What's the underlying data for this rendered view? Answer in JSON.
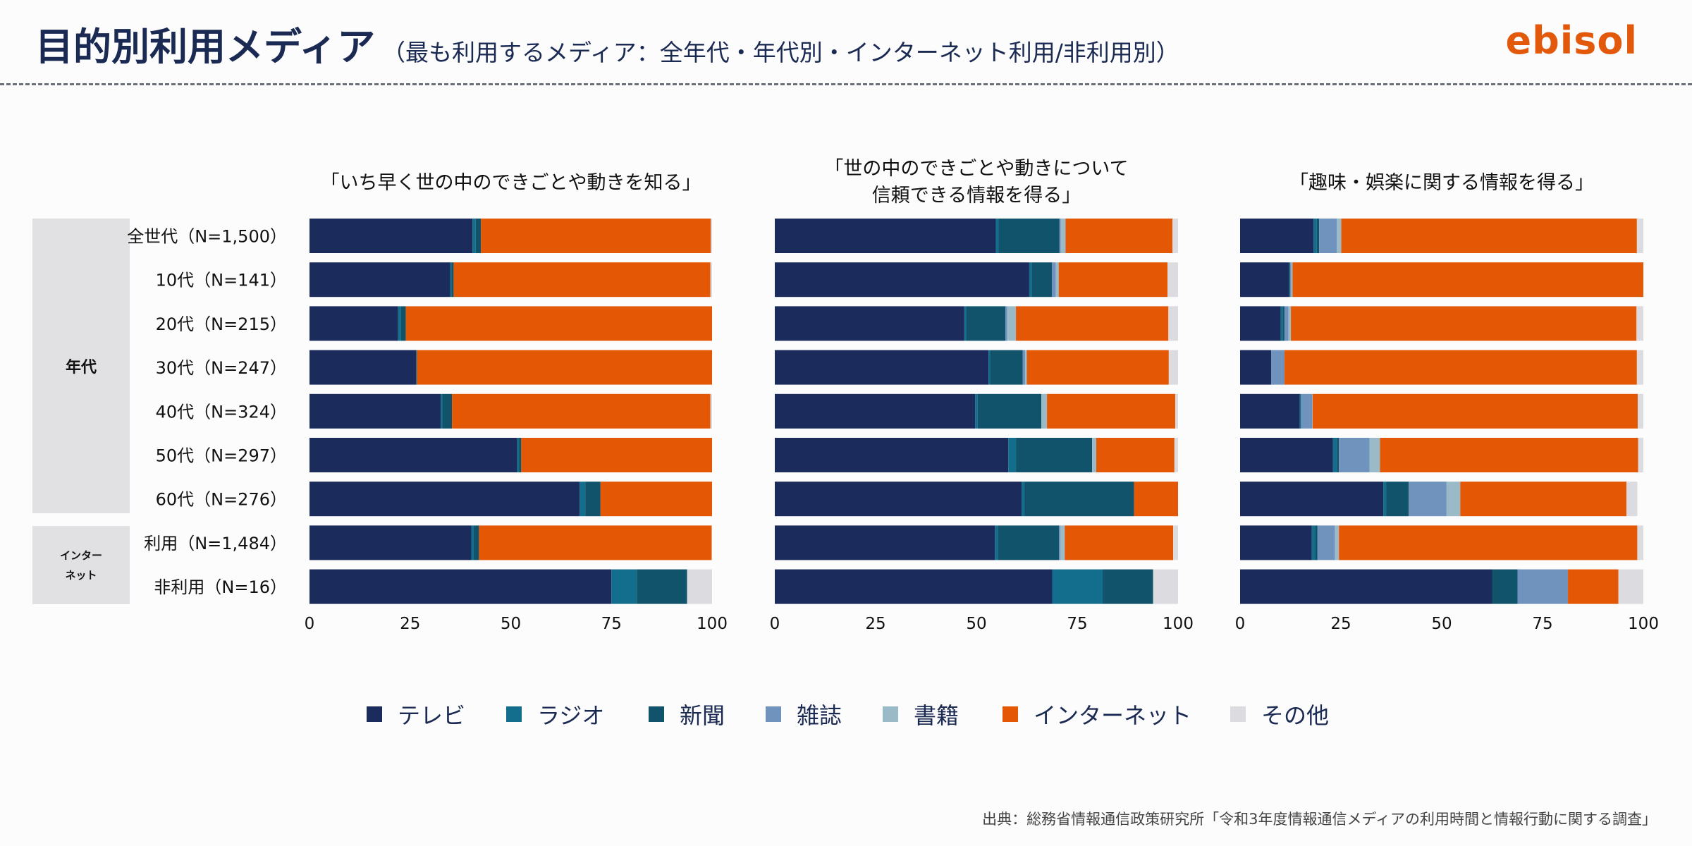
{
  "header": {
    "title": "目的別利用メディア",
    "subtitle": "（最も利用するメディア：全年代・年代別・インターネット利用/非利用別）",
    "logo": "ebisol"
  },
  "groups": {
    "age": "年代",
    "internet_line1": "インター",
    "internet_line2": "ネット"
  },
  "source": "出典：総務省情報通信政策研究所「令和3年度情報通信メディアの利用時間と情報行動に関する調査」",
  "colors": {
    "テレビ": "#1b2b5c",
    "ラジオ": "#136d8c",
    "新聞": "#10536a",
    "雑誌": "#6f93bc",
    "書籍": "#9bbac8",
    "インターネット": "#e35705",
    "その他": "#dcdce0"
  },
  "chart_data": [
    {
      "type": "bar",
      "orientation": "horizontal-stacked",
      "title_lines": [
        "「いち早く世の中のできごとや動きを知る」"
      ],
      "categories": [
        "全世代（N=1,500）",
        "10代（N=141）",
        "20代（N=215）",
        "30代（N=247）",
        "40代（N=324）",
        "50代（N=297）",
        "60代（N=276）",
        "利用（N=1,484）",
        "非利用（N=16）"
      ],
      "xlim": [
        0,
        100
      ],
      "xticks": [
        0,
        25,
        50,
        75,
        100
      ],
      "series": [
        {
          "name": "テレビ",
          "values": [
            40.5,
            35.0,
            22.0,
            26.5,
            32.6,
            51.6,
            67.1,
            40.2,
            75.0
          ]
        },
        {
          "name": "ラジオ",
          "values": [
            0.8,
            0.3,
            0.7,
            0.2,
            0.4,
            0.5,
            1.4,
            0.6,
            6.3
          ]
        },
        {
          "name": "新聞",
          "values": [
            1.3,
            0.5,
            1.2,
            0.0,
            2.4,
            0.5,
            3.8,
            1.3,
            12.5
          ]
        },
        {
          "name": "雑誌",
          "values": [
            0.0,
            0.0,
            0.0,
            0.0,
            0.0,
            0.0,
            0.0,
            0.0,
            0.0
          ]
        },
        {
          "name": "書籍",
          "values": [
            0.0,
            0.0,
            0.0,
            0.0,
            0.0,
            0.0,
            0.0,
            0.0,
            0.0
          ]
        },
        {
          "name": "インターネット",
          "values": [
            57.1,
            63.8,
            76.1,
            73.3,
            64.2,
            47.4,
            27.7,
            57.8,
            0.0
          ]
        },
        {
          "name": "その他",
          "values": [
            0.3,
            0.4,
            0.0,
            0.0,
            0.4,
            0.0,
            0.0,
            0.1,
            6.2
          ]
        }
      ]
    },
    {
      "type": "bar",
      "orientation": "horizontal-stacked",
      "title_lines": [
        "「世の中のできごとや動きについて",
        "信頼できる情報を得る」"
      ],
      "categories": [
        "全世代（N=1,500）",
        "10代（N=141）",
        "20代（N=215）",
        "30代（N=247）",
        "40代（N=324）",
        "50代（N=297）",
        "60代（N=276）",
        "利用（N=1,484）",
        "非利用（N=16）"
      ],
      "xlim": [
        0,
        100
      ],
      "xticks": [
        0,
        25,
        50,
        75,
        100
      ],
      "series": [
        {
          "name": "テレビ",
          "values": [
            54.8,
            63.1,
            47.0,
            53.0,
            49.7,
            57.9,
            61.2,
            54.6,
            68.8
          ]
        },
        {
          "name": "ラジオ",
          "values": [
            0.7,
            0.6,
            0.4,
            0.4,
            0.6,
            1.9,
            0.7,
            0.7,
            12.5
          ]
        },
        {
          "name": "新聞",
          "values": [
            15.1,
            5.0,
            9.8,
            8.1,
            15.8,
            18.9,
            27.2,
            15.2,
            12.5
          ]
        },
        {
          "name": "雑誌",
          "values": [
            0.3,
            1.0,
            0.4,
            0.6,
            0.0,
            0.0,
            0.0,
            0.3,
            0.0
          ]
        },
        {
          "name": "書籍",
          "values": [
            1.2,
            0.7,
            2.2,
            0.4,
            1.4,
            1.0,
            0.0,
            1.1,
            0.0
          ]
        },
        {
          "name": "インターネット",
          "values": [
            26.5,
            27.0,
            37.8,
            35.2,
            31.8,
            19.4,
            10.9,
            26.9,
            0.0
          ]
        },
        {
          "name": "その他",
          "values": [
            1.4,
            2.6,
            2.4,
            2.3,
            0.7,
            0.9,
            0.0,
            1.2,
            6.2
          ]
        }
      ]
    },
    {
      "type": "bar",
      "orientation": "horizontal-stacked",
      "title_lines": [
        "「趣味・娯楽に関する情報を得る」"
      ],
      "categories": [
        "全世代（N=1,500）",
        "10代（N=141）",
        "20代（N=215）",
        "30代（N=247）",
        "40代（N=324）",
        "50代（N=297）",
        "60代（N=276）",
        "利用（N=1,484）",
        "非利用（N=16）"
      ],
      "xlim": [
        0,
        100
      ],
      "xticks": [
        0,
        25,
        50,
        75,
        100
      ],
      "series": [
        {
          "name": "テレビ",
          "values": [
            18.2,
            12.1,
            10.1,
            7.7,
            14.8,
            23.0,
            35.5,
            17.8,
            62.5
          ]
        },
        {
          "name": "ラジオ",
          "values": [
            0.8,
            0.0,
            0.5,
            0.0,
            0.3,
            1.0,
            0.7,
            0.8,
            0.0
          ]
        },
        {
          "name": "新聞",
          "values": [
            0.6,
            0.3,
            0.4,
            0.0,
            0.0,
            0.5,
            5.6,
            0.6,
            6.3
          ]
        },
        {
          "name": "雑誌",
          "values": [
            4.4,
            0.3,
            1.0,
            3.3,
            2.8,
            7.6,
            9.4,
            4.3,
            12.5
          ]
        },
        {
          "name": "書籍",
          "values": [
            1.1,
            0.3,
            0.6,
            0.0,
            0.1,
            2.6,
            3.4,
            1.0,
            0.0
          ]
        },
        {
          "name": "インターネット",
          "values": [
            73.3,
            87.0,
            85.7,
            87.4,
            80.6,
            64.0,
            41.2,
            74.0,
            12.5
          ]
        },
        {
          "name": "その他",
          "values": [
            1.6,
            0.0,
            1.7,
            1.6,
            1.4,
            1.3,
            2.7,
            1.5,
            6.2
          ]
        }
      ]
    }
  ],
  "legend": [
    "テレビ",
    "ラジオ",
    "新聞",
    "雑誌",
    "書籍",
    "インターネット",
    "その他"
  ]
}
